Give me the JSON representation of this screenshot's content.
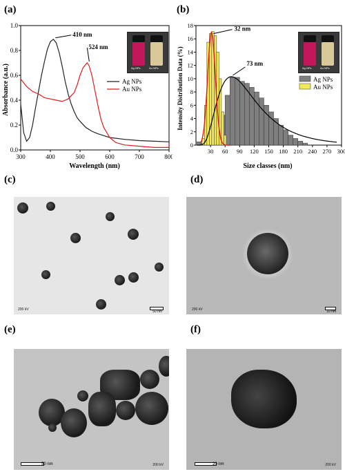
{
  "panels": {
    "a": "(a)",
    "b": "(b)",
    "c": "(c)",
    "d": "(d)",
    "e": "(e)",
    "f": "(f)"
  },
  "chart_data": [
    {
      "type": "line",
      "xlabel": "Wavelength (nm)",
      "ylabel": "Absorbance (a.u.)",
      "xlim": [
        300,
        800
      ],
      "ylim": [
        0,
        1.0
      ],
      "xticks": [
        300,
        400,
        500,
        600,
        700,
        800
      ],
      "yticks": [
        0.0,
        0.2,
        0.4,
        0.6,
        0.8,
        1.0
      ],
      "ytick_labels": [
        "0.0",
        "0.2",
        "0.4",
        "0.6",
        "0.8",
        "1.0"
      ],
      "legend_position": "right",
      "series": [
        {
          "name": "Ag NPs",
          "color": "#222222",
          "x": [
            300,
            310,
            320,
            330,
            340,
            350,
            360,
            370,
            380,
            390,
            400,
            410,
            420,
            430,
            440,
            450,
            460,
            470,
            480,
            490,
            500,
            520,
            540,
            560,
            580,
            600,
            650,
            700,
            750,
            800
          ],
          "y": [
            0.37,
            0.14,
            0.07,
            0.1,
            0.2,
            0.34,
            0.47,
            0.6,
            0.71,
            0.81,
            0.87,
            0.89,
            0.86,
            0.78,
            0.67,
            0.55,
            0.45,
            0.37,
            0.31,
            0.26,
            0.23,
            0.18,
            0.15,
            0.13,
            0.115,
            0.1,
            0.085,
            0.075,
            0.07,
            0.065
          ]
        },
        {
          "name": "Au NPs",
          "color": "#e31a1c",
          "x": [
            300,
            320,
            340,
            360,
            380,
            400,
            420,
            440,
            460,
            480,
            490,
            500,
            510,
            520,
            524,
            530,
            540,
            550,
            560,
            570,
            580,
            600,
            620,
            650,
            700,
            750,
            800
          ],
          "y": [
            0.57,
            0.51,
            0.47,
            0.45,
            0.42,
            0.41,
            0.4,
            0.39,
            0.41,
            0.46,
            0.52,
            0.6,
            0.66,
            0.69,
            0.7,
            0.68,
            0.6,
            0.48,
            0.36,
            0.25,
            0.18,
            0.1,
            0.06,
            0.04,
            0.03,
            0.02,
            0.02
          ]
        }
      ],
      "annotations": [
        {
          "text": "410 nm",
          "x": 410,
          "y": 0.89
        },
        {
          "text": "524 nm",
          "x": 524,
          "y": 0.7
        }
      ]
    },
    {
      "type": "bar",
      "xlabel": "Size classes (nm)",
      "ylabel": "Intensity Distribution Data (%)",
      "xlim": [
        0,
        300
      ],
      "ylim": [
        0,
        18
      ],
      "xticks": [
        30,
        60,
        90,
        120,
        150,
        180,
        210,
        240,
        270,
        300
      ],
      "yticks": [
        0,
        2,
        4,
        6,
        8,
        10,
        12,
        14,
        16,
        18
      ],
      "legend_position": "right",
      "series": [
        {
          "name": "Ag NPs",
          "color": "#7f7f7f",
          "x": [
            5,
            15,
            25,
            35,
            45,
            55,
            65,
            75,
            85,
            95,
            105,
            115,
            125,
            135,
            145,
            155,
            165,
            175,
            185,
            195,
            205,
            215,
            225
          ],
          "values": [
            0.5,
            0.3,
            0.5,
            1,
            2.5,
            4.5,
            7.5,
            10.2,
            10.2,
            9.6,
            9.3,
            8.7,
            8,
            7.1,
            6,
            5,
            4,
            3,
            2.3,
            1.5,
            1,
            0.6,
            0.3
          ]
        },
        {
          "name": "Au NPs",
          "color": "#f2e85a",
          "x": [
            15,
            20,
            25,
            30,
            35,
            40,
            45,
            50,
            55,
            60
          ],
          "values": [
            1,
            6,
            15.5,
            16.8,
            17.1,
            16.5,
            14,
            10,
            5,
            1.5
          ]
        }
      ],
      "fit_curves": [
        {
          "series": "Ag NPs",
          "color": "#000000",
          "peak_x": 73
        },
        {
          "series": "Au NPs",
          "color": "#e31a1c",
          "peak_x": 32
        }
      ],
      "annotations": [
        {
          "text": "32 nm",
          "x": 32,
          "y": 17
        },
        {
          "text": "73 nm",
          "x": 73,
          "y": 10.3
        }
      ]
    }
  ],
  "vials": {
    "left": "Ag NPs",
    "right": "Au NPs",
    "colors": [
      "#c2185b",
      "#d9c89a"
    ]
  },
  "tem": {
    "c": {
      "voltage": "200 kV",
      "scale": "50 nm"
    },
    "d": {
      "voltage": "200 kV",
      "scale": "10 nm"
    },
    "e": {
      "voltage": "200 kV",
      "scale": "50 nm"
    },
    "f": {
      "voltage": "200 kV",
      "scale": "20 nm"
    }
  }
}
